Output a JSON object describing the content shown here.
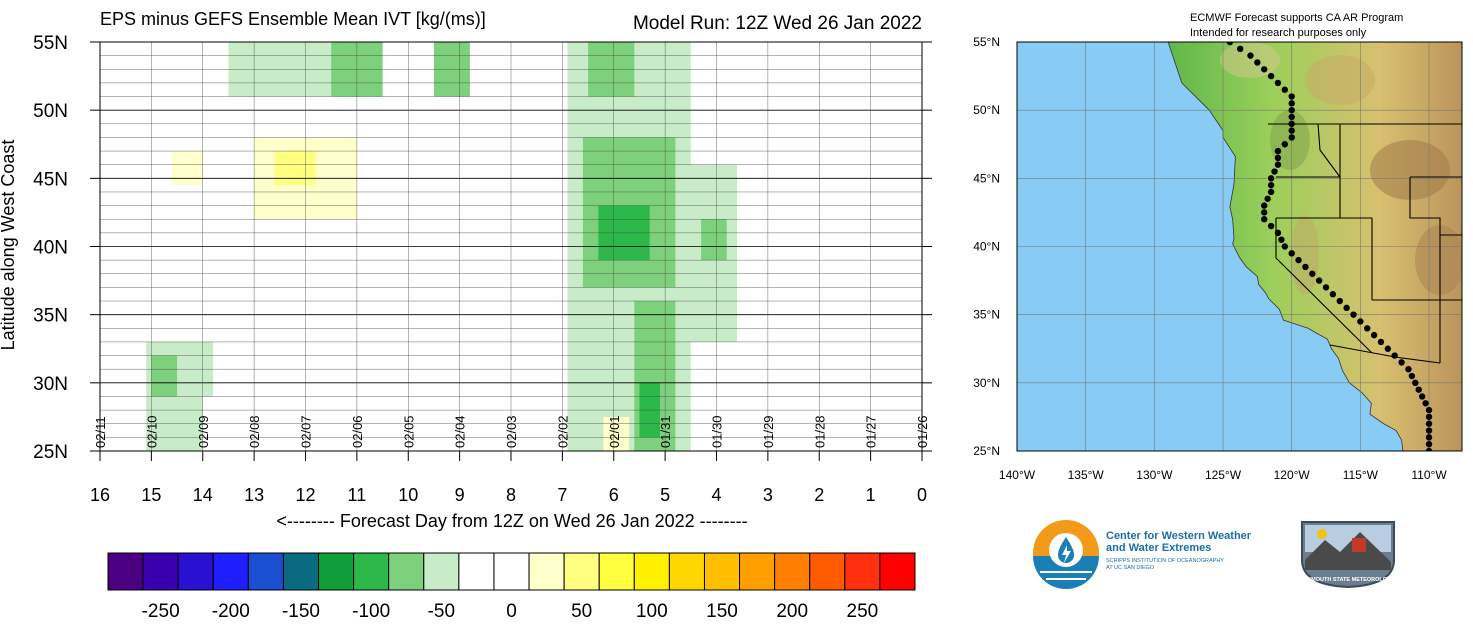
{
  "hov": {
    "title": "EPS minus GEFS Ensemble Mean IVT [kg/(ms)]",
    "model_run": "Model Run: 12Z Wed 26 Jan 2022",
    "ylabel": "Latitude along West Coast",
    "xlabel": "<-------- Forecast Day from 12Z on Wed 26 Jan 2022 --------",
    "lat_labels": [
      "55N",
      "50N",
      "45N",
      "40N",
      "35N",
      "30N",
      "25N"
    ],
    "day_labels": [
      "16",
      "15",
      "14",
      "13",
      "12",
      "11",
      "10",
      "9",
      "8",
      "7",
      "6",
      "5",
      "4",
      "3",
      "2",
      "1",
      "0"
    ],
    "date_labels": [
      "02/11",
      "02/10",
      "02/09",
      "02/08",
      "02/07",
      "02/06",
      "02/05",
      "02/04",
      "02/03",
      "02/02",
      "02/01",
      "01/31",
      "01/30",
      "01/29",
      "01/28",
      "01/27",
      "01/26"
    ]
  },
  "colorbar": {
    "colors": [
      "#4b0082",
      "#3a00b0",
      "#2a10d0",
      "#1e1eff",
      "#1a50d0",
      "#0a6a80",
      "#0f9e3a",
      "#2db84a",
      "#7dd17d",
      "#c8ecc8",
      "#ffffff",
      "#ffffff",
      "#ffffcc",
      "#ffff80",
      "#ffff40",
      "#fff000",
      "#ffd700",
      "#ffbf00",
      "#ffa000",
      "#ff7f00",
      "#ff5a00",
      "#ff3010",
      "#ff0000"
    ],
    "tick_labels": [
      "-250",
      "-200",
      "-150",
      "-100",
      "-50",
      "0",
      "50",
      "100",
      "150",
      "200",
      "250"
    ]
  },
  "map": {
    "header_line1": "ECMWF Forecast supports CA AR Program",
    "header_line2": "Intended for research purposes only",
    "lat_labels": [
      "55°N",
      "50°N",
      "45°N",
      "40°N",
      "35°N",
      "30°N",
      "25°N"
    ],
    "lon_labels": [
      "140°W",
      "135°W",
      "130°W",
      "125°W",
      "120°W",
      "115°W",
      "110°W"
    ],
    "ocean_color": "#88ccf5",
    "coast_points": [
      [
        48.0,
        -125.0
      ],
      [
        46.6,
        -124.1
      ],
      [
        44.6,
        -124.2
      ],
      [
        42.9,
        -124.5
      ],
      [
        42.0,
        -124.3
      ],
      [
        40.6,
        -124.2
      ],
      [
        40.2,
        -124.3
      ],
      [
        39.2,
        -123.8
      ],
      [
        38.5,
        -123.3
      ],
      [
        37.8,
        -122.5
      ],
      [
        37.2,
        -122.4
      ],
      [
        36.6,
        -121.9
      ],
      [
        36.2,
        -121.7
      ],
      [
        35.4,
        -120.9
      ],
      [
        34.6,
        -120.6
      ],
      [
        34.4,
        -120.0
      ],
      [
        34.0,
        -118.8
      ],
      [
        33.7,
        -118.3
      ],
      [
        33.2,
        -117.4
      ],
      [
        32.5,
        -117.1
      ],
      [
        31.8,
        -116.6
      ],
      [
        30.9,
        -116.3
      ],
      [
        30.0,
        -115.8
      ],
      [
        29.3,
        -114.9
      ],
      [
        28.5,
        -114.2
      ],
      [
        27.7,
        -114.3
      ],
      [
        27.0,
        -113.3
      ],
      [
        26.5,
        -112.4
      ],
      [
        25.8,
        -112.0
      ],
      [
        25.0,
        -111.9
      ],
      [
        25.0,
        -110.1
      ]
    ]
  },
  "logos": {
    "cw3e_line1": "Center for Western Weather",
    "cw3e_line2": "and Water Extremes",
    "cw3e_line3": "SCRIPPS INSTITUTION OF OCEANOGRAPHY",
    "cw3e_line4": "AT UC SAN DIEGO",
    "psu_text": "PLYMOUTH STATE METEOROLOGY"
  },
  "chart_data": {
    "type": "heatmap",
    "title": "EPS minus GEFS Ensemble Mean IVT [kg/(ms)]",
    "xlabel": "Forecast Day from 12Z on Wed 26 Jan 2022",
    "ylabel": "Latitude along West Coast",
    "xlim": [
      16,
      0
    ],
    "ylim": [
      25,
      55
    ],
    "x_reversed": true,
    "colorbar_levels": [
      -250,
      -225,
      -200,
      -175,
      -150,
      -125,
      -100,
      -75,
      -50,
      -25,
      0,
      25,
      50,
      75,
      100,
      125,
      150,
      175,
      200,
      225,
      250
    ],
    "regions": [
      {
        "day_from": 6.9,
        "day_to": 4.5,
        "lat_from": 25,
        "lat_to": 55,
        "value": -30
      },
      {
        "day_from": 6.6,
        "day_to": 4.8,
        "lat_from": 37,
        "lat_to": 48,
        "value": -60
      },
      {
        "day_from": 6.3,
        "day_to": 5.3,
        "lat_from": 39,
        "lat_to": 43,
        "value": -90
      },
      {
        "day_from": 6.5,
        "day_to": 5.6,
        "lat_from": 51,
        "lat_to": 55,
        "value": -75
      },
      {
        "day_from": 5.6,
        "day_to": 4.8,
        "lat_from": 25,
        "lat_to": 36,
        "value": -70
      },
      {
        "day_from": 5.5,
        "day_to": 5.1,
        "lat_from": 26,
        "lat_to": 30,
        "value": -100
      },
      {
        "day_from": 4.6,
        "day_to": 3.6,
        "lat_from": 33,
        "lat_to": 46,
        "value": -40
      },
      {
        "day_from": 4.3,
        "day_to": 3.8,
        "lat_from": 39,
        "lat_to": 42,
        "value": -70
      },
      {
        "day_from": 15.1,
        "day_to": 13.8,
        "lat_from": 25,
        "lat_to": 33,
        "value": -40
      },
      {
        "day_from": 15.0,
        "day_to": 14.5,
        "lat_from": 29,
        "lat_to": 32,
        "value": -70
      },
      {
        "day_from": 14.0,
        "day_to": 12.8,
        "lat_from": 25,
        "lat_to": 29,
        "value": -25
      },
      {
        "day_from": 13.5,
        "day_to": 10.5,
        "lat_from": 51,
        "lat_to": 55,
        "value": -30
      },
      {
        "day_from": 11.5,
        "day_to": 10.5,
        "lat_from": 51,
        "lat_to": 55,
        "value": -75
      },
      {
        "day_from": 9.5,
        "day_to": 8.8,
        "lat_from": 51,
        "lat_to": 55,
        "value": -60
      },
      {
        "day_from": 13.0,
        "day_to": 11.0,
        "lat_from": 42,
        "lat_to": 48,
        "value": 30
      },
      {
        "day_from": 12.6,
        "day_to": 11.8,
        "lat_from": 44.5,
        "lat_to": 47,
        "value": 70
      },
      {
        "day_from": 14.6,
        "day_to": 14.0,
        "lat_from": 44.5,
        "lat_to": 47,
        "value": 40
      },
      {
        "day_from": 6.2,
        "day_to": 5.7,
        "lat_from": 25,
        "lat_to": 27.5,
        "value": 40
      }
    ]
  }
}
